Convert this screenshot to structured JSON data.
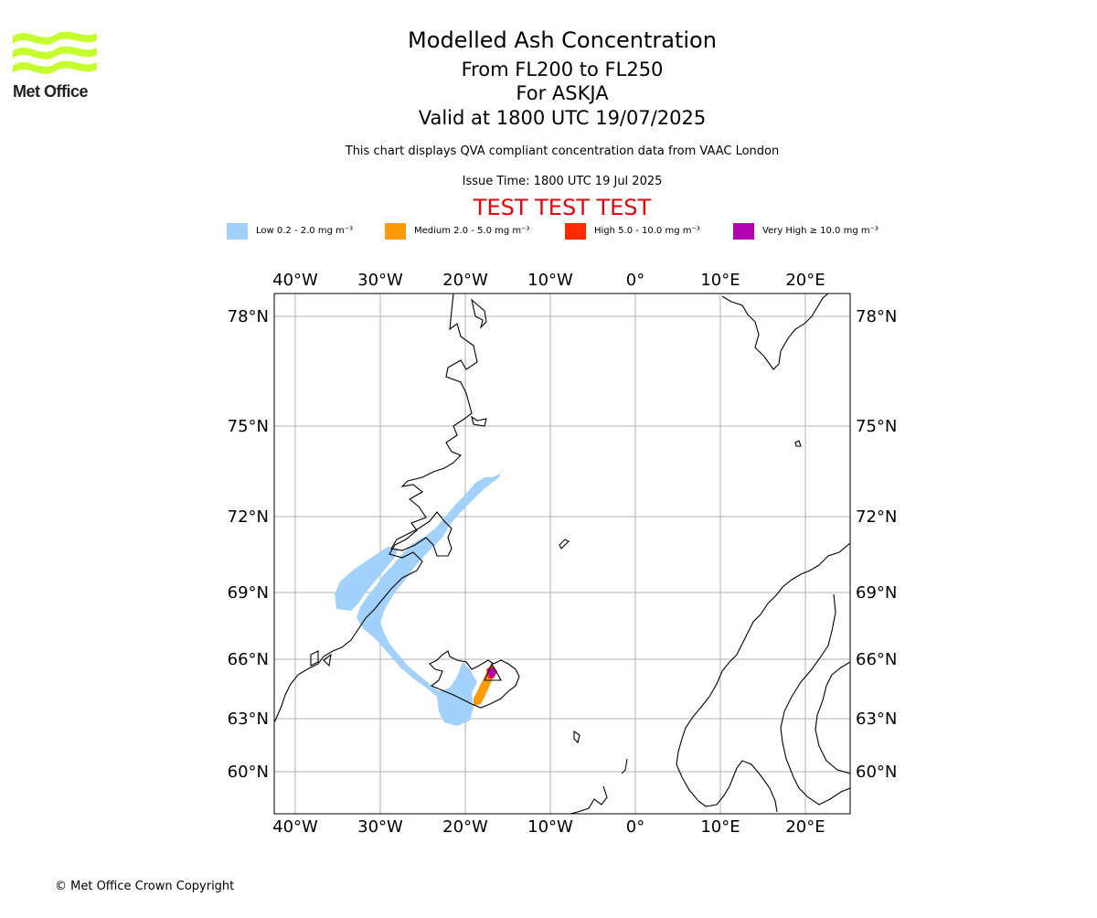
{
  "header": {
    "logo_text": "Met Office",
    "title": "Modelled Ash Concentration",
    "levels": "From FL200 to FL250",
    "volcano": "For ASKJA",
    "valid": "Valid at 1800 UTC 19/07/2025",
    "description": "This chart displays QVA compliant concentration data from VAAC London",
    "issue_time": "Issue Time: 1800 UTC 19 Jul 2025",
    "test_banner": "TEST TEST TEST"
  },
  "colors": {
    "logo": "#c6ff2e",
    "low": "#a2d1fb",
    "medium": "#ff9b08",
    "high": "#ff2a00",
    "very_high": "#b000b0",
    "banner": "#e8000a",
    "grid": "#b0b0b0"
  },
  "legend": [
    {
      "key": "low",
      "label": "Low 0.2 - 2.0 mg m⁻³"
    },
    {
      "key": "medium",
      "label": "Medium 2.0 - 5.0 mg m⁻³"
    },
    {
      "key": "high",
      "label": "High 5.0 - 10.0 mg m⁻³"
    },
    {
      "key": "very_high",
      "label": "Very High ≥ 10.0 mg m⁻³"
    }
  ],
  "map": {
    "lon_ticks": [
      "40°W",
      "30°W",
      "20°W",
      "10°W",
      "0°",
      "10°E",
      "20°E"
    ],
    "lat_ticks": [
      "78°N",
      "75°N",
      "72°N",
      "69°N",
      "66°N",
      "63°N",
      "60°N"
    ]
  },
  "footer": {
    "copyright": "© Met Office Crown Copyright"
  }
}
